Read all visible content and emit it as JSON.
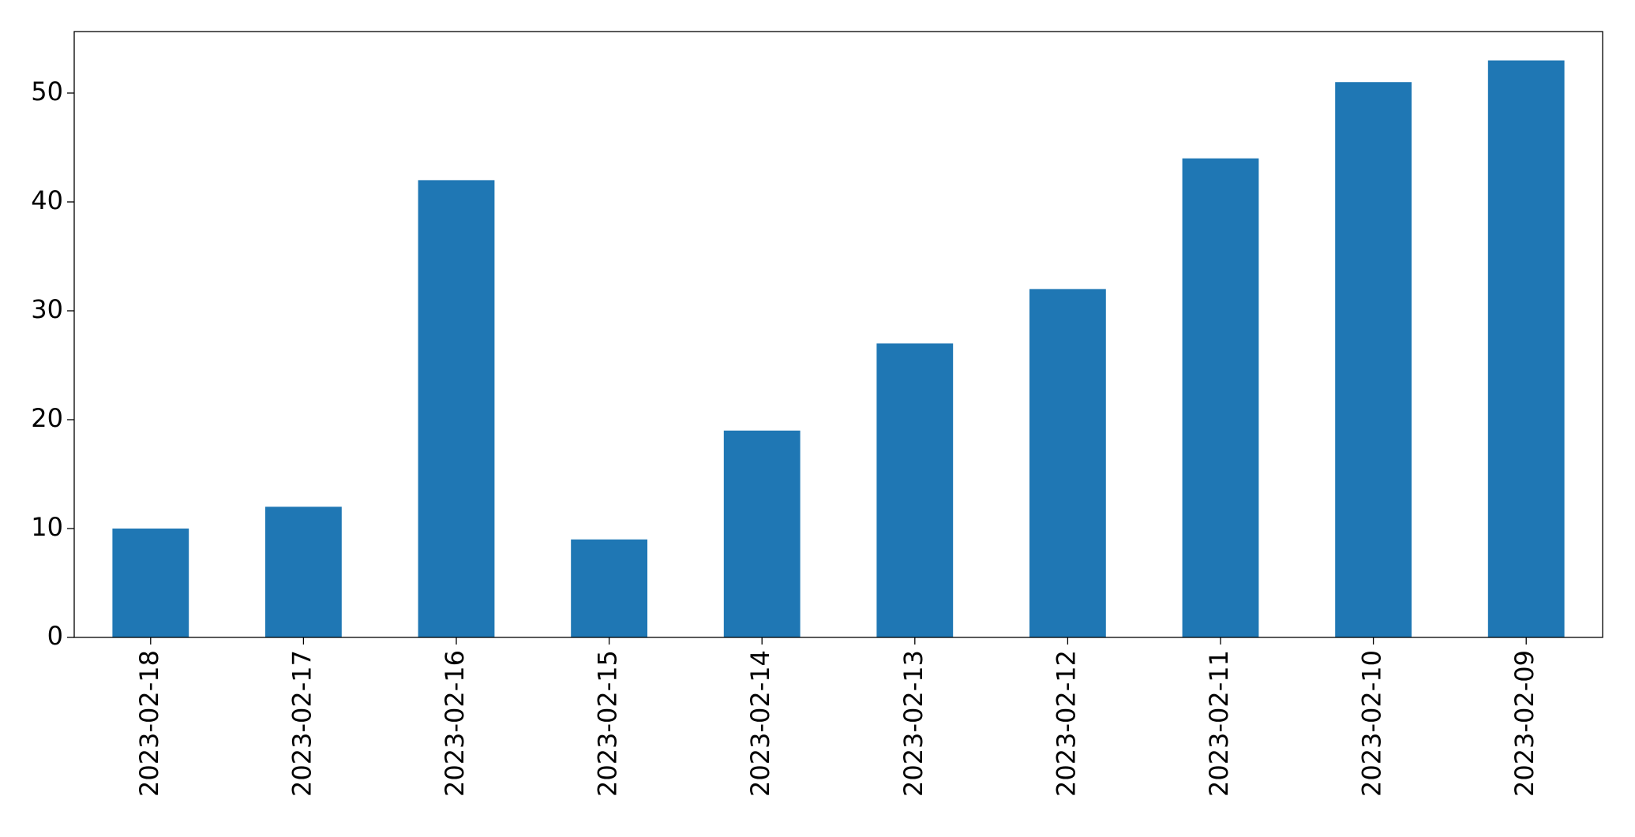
{
  "chart_data": {
    "type": "bar",
    "categories": [
      "2023-02-18",
      "2023-02-17",
      "2023-02-16",
      "2023-02-15",
      "2023-02-14",
      "2023-02-13",
      "2023-02-12",
      "2023-02-11",
      "2023-02-10",
      "2023-02-09"
    ],
    "values": [
      10,
      12,
      42,
      9,
      19,
      27,
      32,
      44,
      51,
      53
    ],
    "color": "#1f77b4",
    "ylim": [
      0,
      55.65
    ],
    "yticks": [
      0,
      10,
      20,
      30,
      40,
      50
    ],
    "grid": false
  }
}
